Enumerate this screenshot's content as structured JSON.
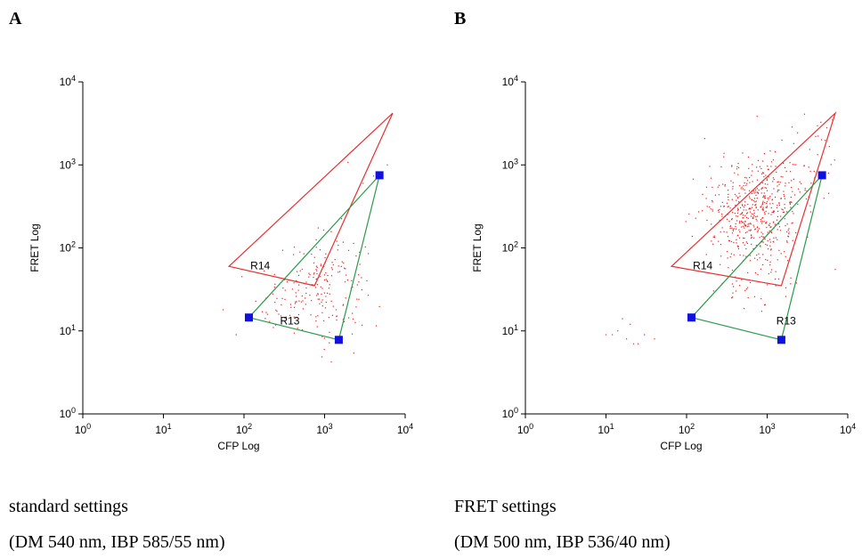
{
  "panels": [
    {
      "letter": "A",
      "caption_line1": "standard settings",
      "caption_line2": "(DM 540 nm, IBP 585/55 nm)"
    },
    {
      "letter": "B",
      "caption_line1": "FRET settings",
      "caption_line2": "(DM 500 nm, IBP 536/40 nm)"
    }
  ],
  "colors": {
    "r14_gate": "#e83030",
    "r13_gate": "#2a9a4a",
    "handle": "#1010e0",
    "dots": "#e82020",
    "axis": "#000000"
  },
  "chart_data": [
    {
      "type": "scatter",
      "scale": "log",
      "xlabel": "CFP Log",
      "ylabel": "FRET Log",
      "xlim": [
        1,
        10000
      ],
      "ylim": [
        1,
        10000
      ],
      "ticks": [
        {
          "base": "10",
          "exp": "0",
          "value": 1
        },
        {
          "base": "10",
          "exp": "1",
          "value": 10
        },
        {
          "base": "10",
          "exp": "2",
          "value": 100
        },
        {
          "base": "10",
          "exp": "3",
          "value": 1000
        },
        {
          "base": "10",
          "exp": "4",
          "value": 10000
        }
      ],
      "gates": [
        {
          "label": "R14",
          "label_at": [
            120,
            55
          ],
          "color": "#e83030",
          "vertices": [
            [
              65,
              60
            ],
            [
              7000,
              4200
            ],
            [
              750,
              35
            ]
          ]
        },
        {
          "label": "R13",
          "label_at": [
            280,
            12
          ],
          "color": "#2a9a4a",
          "vertices": [
            [
              115,
              14.5
            ],
            [
              4800,
              750
            ],
            [
              1500,
              7.8
            ]
          ],
          "handles": [
            [
              115,
              14.5
            ],
            [
              4800,
              750
            ],
            [
              1500,
              7.8
            ]
          ]
        }
      ],
      "clusters": [
        {
          "n": 190,
          "cx": 900,
          "cy": 35,
          "sx": 0.28,
          "sy": 0.3
        },
        {
          "n": 20,
          "cx": 300,
          "cy": 15,
          "sx": 0.18,
          "sy": 0.12
        },
        {
          "n": 6,
          "cx": 2500,
          "cy": 300,
          "sx": 0.3,
          "sy": 0.35
        }
      ],
      "points": [
        [
          6000,
          1000
        ],
        [
          55,
          18
        ],
        [
          80,
          9
        ],
        [
          3000,
          600
        ]
      ]
    },
    {
      "type": "scatter",
      "scale": "log",
      "xlabel": "CFP Log",
      "ylabel": "FRET Log",
      "xlim": [
        1,
        10000
      ],
      "ylim": [
        1,
        10000
      ],
      "ticks": [
        {
          "base": "10",
          "exp": "0",
          "value": 1
        },
        {
          "base": "10",
          "exp": "1",
          "value": 10
        },
        {
          "base": "10",
          "exp": "2",
          "value": 100
        },
        {
          "base": "10",
          "exp": "3",
          "value": 1000
        },
        {
          "base": "10",
          "exp": "4",
          "value": 10000
        }
      ],
      "gates": [
        {
          "label": "R14",
          "label_at": [
            120,
            55
          ],
          "color": "#e83030",
          "vertices": [
            [
              65,
              60
            ],
            [
              7000,
              4200
            ],
            [
              1500,
              35
            ]
          ]
        },
        {
          "label": "R13",
          "label_at": [
            1300,
            12
          ],
          "color": "#2a9a4a",
          "vertices": [
            [
              115,
              14.5
            ],
            [
              4800,
              750
            ],
            [
              1500,
              7.8
            ]
          ],
          "handles": [
            [
              115,
              14.5
            ],
            [
              4800,
              750
            ],
            [
              1500,
              7.8
            ]
          ]
        }
      ],
      "clusters": [
        {
          "n": 520,
          "cx": 700,
          "cy": 250,
          "sx": 0.28,
          "sy": 0.32
        },
        {
          "n": 45,
          "cx": 2500,
          "cy": 1200,
          "sx": 0.25,
          "sy": 0.25
        },
        {
          "n": 40,
          "cx": 600,
          "cy": 40,
          "sx": 0.3,
          "sy": 0.25
        }
      ],
      "points": [
        [
          10,
          9
        ],
        [
          14,
          10
        ],
        [
          18,
          8
        ],
        [
          20,
          12
        ],
        [
          22,
          7
        ],
        [
          25,
          7
        ],
        [
          16,
          14
        ],
        [
          12,
          9
        ],
        [
          30,
          9
        ],
        [
          40,
          8
        ],
        [
          7000,
          55
        ],
        [
          6500,
          3500
        ],
        [
          5500,
          2800
        ],
        [
          4000,
          2200
        ]
      ]
    }
  ]
}
